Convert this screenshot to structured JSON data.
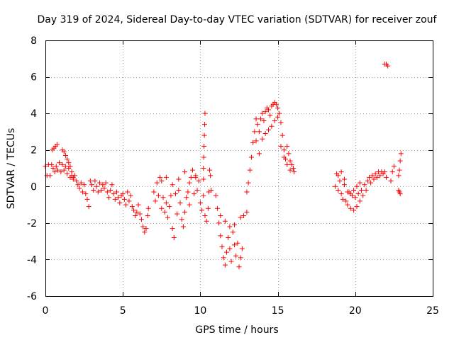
{
  "chart_data": {
    "type": "scatter",
    "title": "Day 319 of 2024, Sidereal Day-to-day VTEC variation (SDTVAR) for receiver zouf",
    "xlabel": "GPS time / hours",
    "ylabel": "SDTVAR / TECUs",
    "xlim": [
      0,
      25
    ],
    "ylim": [
      -6,
      8
    ],
    "xticks": [
      0,
      5,
      10,
      15,
      20,
      25
    ],
    "yticks": [
      -6,
      -4,
      -2,
      0,
      2,
      4,
      6,
      8
    ],
    "marker": "+",
    "grid": true,
    "colors": {
      "series": "#ff0000",
      "grid": "#a0a0a0",
      "axes": "#000000"
    },
    "series": [
      {
        "name": "SDTVAR",
        "points": [
          [
            0.0,
            1.1
          ],
          [
            0.1,
            0.6
          ],
          [
            0.2,
            1.2
          ],
          [
            0.3,
            0.6
          ],
          [
            0.4,
            1.2
          ],
          [
            0.45,
            2.0
          ],
          [
            0.55,
            2.1
          ],
          [
            0.65,
            2.2
          ],
          [
            0.75,
            2.3
          ],
          [
            0.5,
            1.0
          ],
          [
            0.6,
            0.8
          ],
          [
            0.7,
            1.1
          ],
          [
            0.8,
            0.9
          ],
          [
            0.9,
            1.3
          ],
          [
            1.0,
            0.8
          ],
          [
            1.1,
            1.2
          ],
          [
            1.2,
            0.9
          ],
          [
            1.3,
            1.1
          ],
          [
            1.4,
            0.7
          ],
          [
            1.5,
            1.0
          ],
          [
            1.6,
            0.5
          ],
          [
            1.7,
            0.8
          ],
          [
            1.8,
            0.4
          ],
          [
            1.9,
            0.6
          ],
          [
            2.0,
            0.3
          ],
          [
            1.1,
            2.0
          ],
          [
            1.2,
            1.9
          ],
          [
            1.3,
            1.7
          ],
          [
            1.4,
            1.5
          ],
          [
            1.5,
            1.3
          ],
          [
            1.6,
            1.1
          ],
          [
            1.7,
            0.6
          ],
          [
            1.8,
            0.5
          ],
          [
            2.1,
            0.1
          ],
          [
            2.2,
            -0.1
          ],
          [
            2.3,
            0.2
          ],
          [
            2.4,
            -0.3
          ],
          [
            2.5,
            0.1
          ],
          [
            2.6,
            -0.4
          ],
          [
            2.7,
            -0.7
          ],
          [
            2.8,
            -1.1
          ],
          [
            2.9,
            0.3
          ],
          [
            3.0,
            0.1
          ],
          [
            3.1,
            -0.2
          ],
          [
            3.2,
            0.3
          ],
          [
            3.3,
            0.0
          ],
          [
            3.4,
            -0.3
          ],
          [
            3.5,
            0.2
          ],
          [
            3.6,
            -0.2
          ],
          [
            3.7,
            0.1
          ],
          [
            3.8,
            -0.1
          ],
          [
            3.9,
            0.2
          ],
          [
            4.0,
            -0.3
          ],
          [
            4.1,
            -0.6
          ],
          [
            4.2,
            -0.2
          ],
          [
            4.3,
            0.1
          ],
          [
            4.4,
            -0.4
          ],
          [
            4.5,
            -0.7
          ],
          [
            4.6,
            -0.3
          ],
          [
            4.7,
            -0.6
          ],
          [
            4.8,
            -0.9
          ],
          [
            4.9,
            -0.5
          ],
          [
            5.0,
            -0.4
          ],
          [
            5.1,
            -0.7
          ],
          [
            5.2,
            -1.0
          ],
          [
            5.3,
            -0.3
          ],
          [
            5.4,
            -0.8
          ],
          [
            5.5,
            -0.5
          ],
          [
            5.6,
            -1.1
          ],
          [
            5.7,
            -1.3
          ],
          [
            5.8,
            -1.6
          ],
          [
            5.9,
            -1.4
          ],
          [
            6.0,
            -1.0
          ],
          [
            6.1,
            -1.5
          ],
          [
            6.2,
            -1.8
          ],
          [
            6.3,
            -2.2
          ],
          [
            6.4,
            -2.5
          ],
          [
            6.5,
            -2.3
          ],
          [
            6.6,
            -1.6
          ],
          [
            6.65,
            -1.2
          ],
          [
            7.0,
            -0.3
          ],
          [
            7.1,
            -0.8
          ],
          [
            7.2,
            0.2
          ],
          [
            7.3,
            -0.5
          ],
          [
            7.4,
            0.5
          ],
          [
            7.5,
            -1.2
          ],
          [
            7.6,
            -0.6
          ],
          [
            7.7,
            -1.4
          ],
          [
            7.8,
            -0.9
          ],
          [
            7.9,
            -1.7
          ],
          [
            8.0,
            -1.1
          ],
          [
            8.1,
            -0.5
          ],
          [
            8.2,
            -2.3
          ],
          [
            8.3,
            -2.8
          ],
          [
            8.4,
            -0.4
          ],
          [
            8.5,
            -1.5
          ],
          [
            8.6,
            -0.2
          ],
          [
            8.7,
            -0.9
          ],
          [
            8.8,
            -1.8
          ],
          [
            8.9,
            -2.2
          ],
          [
            9.0,
            -1.4
          ],
          [
            9.1,
            -0.6
          ],
          [
            9.2,
            -0.3
          ],
          [
            9.3,
            -1.0
          ],
          [
            9.4,
            0.5
          ],
          [
            9.5,
            0.9
          ],
          [
            9.6,
            -0.4
          ],
          [
            9.7,
            0.6
          ],
          [
            9.8,
            -0.2
          ],
          [
            9.9,
            0.3
          ],
          [
            10.0,
            -0.9
          ],
          [
            10.1,
            -1.3
          ],
          [
            10.2,
            -0.5
          ],
          [
            10.3,
            -1.6
          ],
          [
            10.4,
            -1.9
          ],
          [
            10.5,
            -1.2
          ],
          [
            10.55,
            -0.3
          ],
          [
            10.6,
            0.9
          ],
          [
            10.65,
            0.6
          ],
          [
            10.7,
            -0.2
          ],
          [
            7.5,
            0.3
          ],
          [
            7.8,
            0.5
          ],
          [
            8.2,
            0.1
          ],
          [
            8.6,
            0.4
          ],
          [
            9.0,
            0.8
          ],
          [
            9.3,
            0.2
          ],
          [
            9.7,
            0.5
          ],
          [
            10.2,
            0.4
          ],
          [
            10.2,
            1.0
          ],
          [
            10.22,
            1.6
          ],
          [
            10.24,
            2.2
          ],
          [
            10.26,
            2.8
          ],
          [
            10.28,
            3.4
          ],
          [
            10.3,
            4.0
          ],
          [
            11.0,
            -0.5
          ],
          [
            11.1,
            -1.2
          ],
          [
            11.2,
            -2.0
          ],
          [
            11.3,
            -2.7
          ],
          [
            11.4,
            -3.3
          ],
          [
            11.5,
            -3.9
          ],
          [
            11.6,
            -4.3
          ],
          [
            11.7,
            -3.6
          ],
          [
            11.8,
            -2.8
          ],
          [
            11.9,
            -3.4
          ],
          [
            12.0,
            -4.1
          ],
          [
            12.1,
            -2.5
          ],
          [
            12.2,
            -3.2
          ],
          [
            12.3,
            -3.8
          ],
          [
            12.4,
            -3.1
          ],
          [
            12.5,
            -4.4
          ],
          [
            12.6,
            -3.9
          ],
          [
            12.7,
            -3.4
          ],
          [
            11.3,
            -1.6
          ],
          [
            11.6,
            -1.9
          ],
          [
            11.9,
            -2.2
          ],
          [
            12.2,
            -2.1
          ],
          [
            12.6,
            -1.7
          ],
          [
            12.8,
            -1.6
          ],
          [
            13.0,
            -1.4
          ],
          [
            13.0,
            -0.3
          ],
          [
            13.1,
            0.2
          ],
          [
            13.2,
            0.9
          ],
          [
            13.3,
            1.6
          ],
          [
            13.4,
            2.4
          ],
          [
            13.5,
            3.0
          ],
          [
            13.6,
            3.7
          ],
          [
            13.7,
            3.4
          ],
          [
            13.8,
            3.0
          ],
          [
            13.9,
            3.7
          ],
          [
            14.0,
            4.0
          ],
          [
            14.1,
            3.6
          ],
          [
            14.2,
            4.1
          ],
          [
            14.3,
            4.3
          ],
          [
            14.4,
            4.2
          ],
          [
            14.5,
            3.9
          ],
          [
            14.6,
            4.4
          ],
          [
            14.7,
            4.5
          ],
          [
            14.8,
            4.6
          ],
          [
            14.9,
            4.5
          ],
          [
            15.0,
            4.3
          ],
          [
            15.1,
            4.0
          ],
          [
            15.2,
            3.5
          ],
          [
            15.3,
            2.8
          ],
          [
            15.4,
            2.0
          ],
          [
            15.5,
            1.5
          ],
          [
            15.6,
            2.2
          ],
          [
            15.7,
            1.8
          ],
          [
            15.8,
            1.4
          ],
          [
            15.9,
            1.2
          ],
          [
            16.0,
            1.0
          ],
          [
            16.05,
            0.8
          ],
          [
            13.6,
            2.5
          ],
          [
            13.8,
            1.8
          ],
          [
            14.0,
            2.6
          ],
          [
            14.2,
            2.9
          ],
          [
            14.4,
            3.1
          ],
          [
            14.6,
            3.3
          ],
          [
            14.8,
            3.6
          ],
          [
            15.0,
            3.8
          ],
          [
            15.2,
            2.2
          ],
          [
            15.4,
            1.6
          ],
          [
            15.6,
            1.2
          ],
          [
            15.8,
            0.9
          ],
          [
            18.7,
            0.0
          ],
          [
            18.8,
            0.7
          ],
          [
            18.9,
            -0.2
          ],
          [
            19.0,
            0.3
          ],
          [
            19.1,
            -0.4
          ],
          [
            19.2,
            -0.7
          ],
          [
            19.3,
            0.4
          ],
          [
            19.4,
            -0.8
          ],
          [
            19.5,
            -1.0
          ],
          [
            19.6,
            -0.3
          ],
          [
            19.7,
            -1.2
          ],
          [
            19.8,
            -0.5
          ],
          [
            19.9,
            -1.3
          ],
          [
            20.0,
            -0.6
          ],
          [
            20.1,
            -1.1
          ],
          [
            20.2,
            -0.4
          ],
          [
            20.3,
            -0.8
          ],
          [
            20.4,
            -0.2
          ],
          [
            20.5,
            -0.5
          ],
          [
            20.6,
            0.1
          ],
          [
            20.7,
            -0.2
          ],
          [
            20.8,
            0.3
          ],
          [
            20.9,
            0.5
          ],
          [
            21.0,
            0.2
          ],
          [
            21.1,
            0.6
          ],
          [
            21.2,
            0.4
          ],
          [
            21.3,
            0.7
          ],
          [
            21.4,
            0.5
          ],
          [
            21.5,
            0.8
          ],
          [
            21.6,
            0.6
          ],
          [
            21.7,
            0.8
          ],
          [
            21.8,
            0.7
          ],
          [
            21.9,
            0.8
          ],
          [
            22.0,
            0.5
          ],
          [
            21.9,
            6.7
          ],
          [
            22.0,
            6.7
          ],
          [
            22.1,
            6.6
          ],
          [
            22.3,
            0.3
          ],
          [
            22.4,
            0.8
          ],
          [
            22.5,
            1.1
          ],
          [
            22.8,
            0.6
          ],
          [
            22.85,
            0.9
          ],
          [
            22.9,
            1.4
          ],
          [
            22.95,
            1.8
          ],
          [
            22.8,
            -0.2
          ],
          [
            22.85,
            -0.3
          ],
          [
            22.9,
            -0.4
          ],
          [
            18.9,
            0.6
          ],
          [
            19.1,
            0.8
          ],
          [
            19.3,
            0.1
          ],
          [
            19.5,
            -0.3
          ],
          [
            19.7,
            -0.4
          ],
          [
            19.9,
            -0.2
          ],
          [
            20.1,
            0.0
          ],
          [
            20.3,
            0.2
          ]
        ]
      }
    ]
  }
}
